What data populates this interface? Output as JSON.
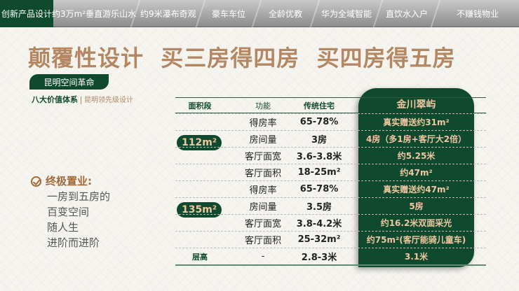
{
  "nav": {
    "tabs": [
      "创新产品设计",
      "约3万m²垂直游乐山水",
      "约9米瀑布奇观",
      "豪车车位",
      "全龄优教",
      "华为全域智能",
      "直饮水入户",
      "不赚钱物业"
    ],
    "active": 0
  },
  "title": "颠覆性设计  买三房得四房  买四房得五房",
  "pill": "昆明空间革命",
  "subtitle": {
    "main": "八大价值体系",
    "secondary": "昆明领先级设计"
  },
  "slogan": {
    "heading": "终极置业:",
    "lines": [
      "一房到五房的",
      "百变空间",
      "随人生",
      "进阶而进阶"
    ]
  },
  "table": {
    "headers": [
      "面积段",
      "功能",
      "传统住宅",
      "金川翠屿"
    ],
    "groups": [
      {
        "label": "112m²",
        "rows": [
          [
            "得房率",
            "65-78%",
            "真实赠送约31m²"
          ],
          [
            "房间量",
            "3房",
            "4房（多1房+客厅大2倍）"
          ],
          [
            "客厅面宽",
            "3.6-3.8米",
            "约5.25米"
          ],
          [
            "客厅面积",
            "18-25m²",
            "约47m²"
          ]
        ]
      },
      {
        "label": "135m²",
        "rows": [
          [
            "得房率",
            "65-78%",
            "真实赠送约47m²"
          ],
          [
            "房间量",
            "3.5房",
            "5房"
          ],
          [
            "客厅面宽",
            "3.8-4.2米",
            "约16.2米双面采光"
          ],
          [
            "客厅面积",
            "25-32m²",
            "约75m²(客厅能骑儿童车)"
          ]
        ]
      }
    ],
    "last": {
      "label": "层高",
      "func": "-",
      "trad": "2.8-3米",
      "ours": "3.1米"
    }
  },
  "colors": {
    "green": "#0f4a2e",
    "gold": "#b48762",
    "highlight_text": "#f0c7a0"
  }
}
